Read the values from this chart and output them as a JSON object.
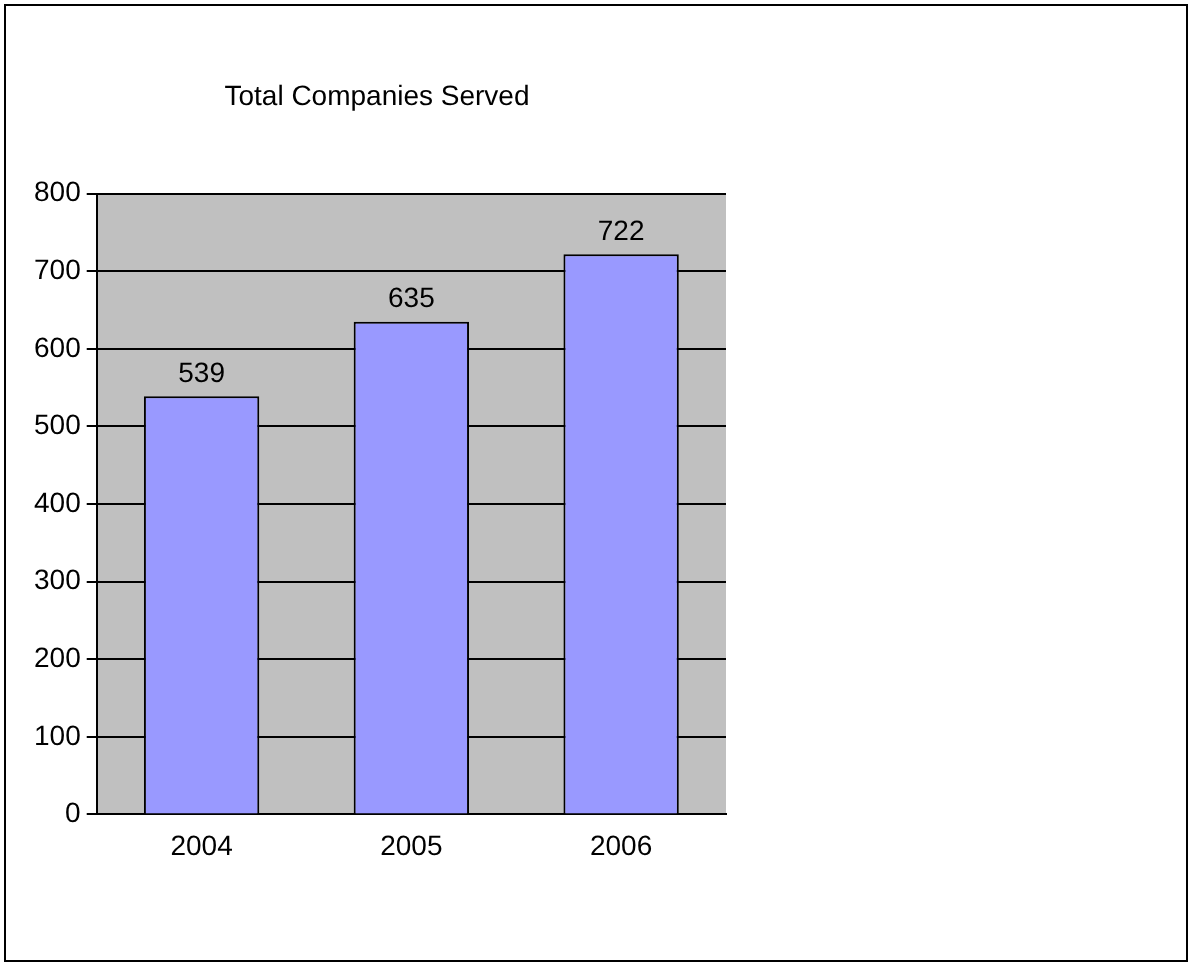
{
  "chart_data": {
    "type": "bar",
    "title": "Total Companies Served",
    "categories": [
      "2004",
      "2005",
      "2006"
    ],
    "values": [
      539,
      635,
      722
    ],
    "color": "#9999ff",
    "ylim": [
      0,
      800
    ],
    "yticks": [
      0,
      100,
      200,
      300,
      400,
      500,
      600,
      700,
      800
    ],
    "grid": "y",
    "data_labels": true,
    "legend": false
  }
}
